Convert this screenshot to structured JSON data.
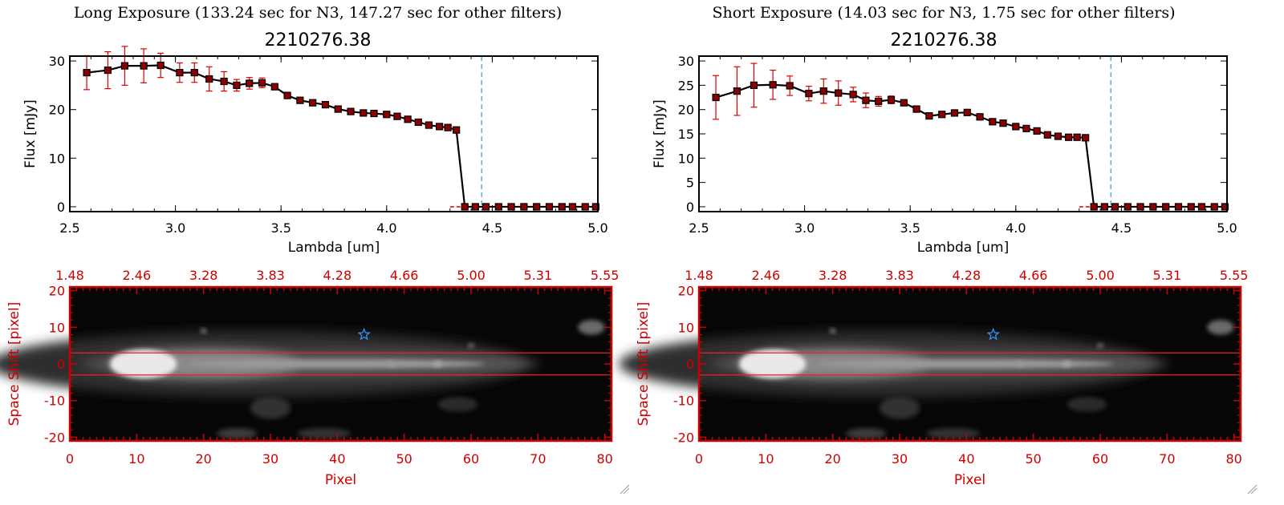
{
  "panels": [
    {
      "title": "Long Exposure (133.24 sec for N3, 147.27 sec for other filters)",
      "object_id": "2210276.38"
    },
    {
      "title": "Short Exposure (14.03 sec for N3, 1.75 sec for other filters)",
      "object_id": "2210276.38"
    }
  ],
  "colors": {
    "line": "#000000",
    "marker": "#8b0000",
    "error_bar": "#dd0000",
    "ref_line": "#3399dd",
    "image_axes": "#cc0000",
    "star": "#3399ff"
  },
  "chart_data": [
    {
      "type": "line",
      "title": "2210276.38",
      "xlabel": "Lambda [um]",
      "ylabel": "Flux [mJy]",
      "xlim": [
        2.5,
        5.0
      ],
      "ylim": [
        -1,
        31
      ],
      "xticks": [
        "2.5",
        "3.0",
        "3.5",
        "4.0",
        "4.5",
        "5.0"
      ],
      "yticks": [
        "0",
        "10",
        "20",
        "30"
      ],
      "ytick_values": [
        0,
        10,
        20,
        30
      ],
      "reference_line_x": 4.45,
      "x": [
        2.58,
        2.68,
        2.76,
        2.85,
        2.93,
        3.02,
        3.09,
        3.16,
        3.23,
        3.29,
        3.35,
        3.41,
        3.47,
        3.53,
        3.59,
        3.65,
        3.71,
        3.77,
        3.83,
        3.89,
        3.94,
        4.0,
        4.05,
        4.1,
        4.15,
        4.2,
        4.25,
        4.29,
        4.33,
        4.37,
        4.42,
        4.47,
        4.53,
        4.59,
        4.65,
        4.71,
        4.77,
        4.83,
        4.88,
        4.94,
        4.99
      ],
      "y": [
        27.6,
        28.1,
        29.0,
        29.0,
        29.1,
        27.6,
        27.6,
        26.3,
        25.8,
        25.0,
        25.4,
        25.5,
        24.7,
        22.9,
        21.9,
        21.4,
        21.0,
        20.1,
        19.6,
        19.3,
        19.2,
        19.0,
        18.6,
        18.0,
        17.4,
        16.8,
        16.5,
        16.3,
        15.8,
        0,
        0,
        0,
        0,
        0,
        0,
        0,
        0,
        0,
        0,
        0,
        0
      ],
      "yerr": [
        3.5,
        3.8,
        4.0,
        3.5,
        2.5,
        2.0,
        2.0,
        2.5,
        2.0,
        1.2,
        1.2,
        1.0,
        0.6,
        0.5,
        0.4,
        0.4,
        0.4,
        0.4,
        0.4,
        0.4,
        0.4,
        0.4,
        0.4,
        0.4,
        0.4,
        0.4,
        0.4,
        0.4,
        0.4,
        0,
        0,
        0,
        0,
        0,
        0,
        0,
        0,
        0,
        0,
        0,
        0
      ]
    },
    {
      "type": "line",
      "title": "2210276.38",
      "xlabel": "Lambda [um]",
      "ylabel": "Flux [mJy]",
      "xlim": [
        2.5,
        5.0
      ],
      "ylim": [
        -1,
        31
      ],
      "xticks": [
        "2.5",
        "3.0",
        "3.5",
        "4.0",
        "4.5",
        "5.0"
      ],
      "yticks": [
        "0",
        "5",
        "10",
        "15",
        "20",
        "25",
        "30"
      ],
      "ytick_values": [
        0,
        5,
        10,
        15,
        20,
        25,
        30
      ],
      "reference_line_x": 4.45,
      "x": [
        2.58,
        2.68,
        2.76,
        2.85,
        2.93,
        3.02,
        3.09,
        3.16,
        3.23,
        3.29,
        3.35,
        3.41,
        3.47,
        3.53,
        3.59,
        3.65,
        3.71,
        3.77,
        3.83,
        3.89,
        3.94,
        4.0,
        4.05,
        4.1,
        4.15,
        4.2,
        4.25,
        4.29,
        4.33,
        4.37,
        4.42,
        4.47,
        4.53,
        4.59,
        4.65,
        4.71,
        4.77,
        4.83,
        4.88,
        4.94,
        4.99
      ],
      "y": [
        22.5,
        23.8,
        25.0,
        25.1,
        24.9,
        23.3,
        23.8,
        23.4,
        23.1,
        21.9,
        21.7,
        22.0,
        21.4,
        20.1,
        18.7,
        19.0,
        19.3,
        19.4,
        18.5,
        17.5,
        17.2,
        16.5,
        16.1,
        15.6,
        14.8,
        14.5,
        14.3,
        14.3,
        14.2,
        0,
        0,
        0,
        0,
        0,
        0,
        0,
        0,
        0,
        0,
        0,
        0
      ],
      "yerr": [
        4.5,
        5.0,
        4.5,
        3.0,
        2.0,
        1.5,
        2.5,
        2.5,
        1.5,
        1.5,
        1.0,
        0.8,
        0.5,
        0.5,
        0.4,
        0.4,
        0.4,
        0.4,
        0.4,
        0.4,
        0.4,
        0.4,
        0.4,
        0.4,
        0.4,
        0.4,
        0.4,
        0.4,
        0.4,
        0,
        0,
        0,
        0,
        0,
        0,
        0,
        0,
        0,
        0,
        0,
        0
      ]
    },
    {
      "type": "heatmap",
      "xlabel": "Pixel",
      "ylabel": "Space Shift [pixel]",
      "xlim": [
        0,
        81
      ],
      "ylim": [
        -21,
        21
      ],
      "xticks": [
        "0",
        "10",
        "20",
        "30",
        "40",
        "50",
        "60",
        "70",
        "80"
      ],
      "yticks": [
        "-20",
        "-10",
        "0",
        "10",
        "20"
      ],
      "top_axis_ticks": [
        "1.48",
        "2.46",
        "3.28",
        "3.83",
        "4.28",
        "4.66",
        "5.00",
        "5.31",
        "5.55"
      ],
      "extraction_lines_y": [
        -3,
        3
      ],
      "star_marker": [
        44,
        8
      ],
      "bright_core_pixel": 11
    },
    {
      "type": "heatmap",
      "xlabel": "Pixel",
      "ylabel": "Space Shift [pixel]",
      "xlim": [
        0,
        81
      ],
      "ylim": [
        -21,
        21
      ],
      "xticks": [
        "0",
        "10",
        "20",
        "30",
        "40",
        "50",
        "60",
        "70",
        "80"
      ],
      "yticks": [
        "-20",
        "-10",
        "0",
        "10",
        "20"
      ],
      "top_axis_ticks": [
        "1.48",
        "2.46",
        "3.28",
        "3.83",
        "4.28",
        "4.66",
        "5.00",
        "5.31",
        "5.55"
      ],
      "extraction_lines_y": [
        -3,
        3
      ],
      "star_marker": [
        44,
        8
      ],
      "bright_core_pixel": 11
    }
  ]
}
